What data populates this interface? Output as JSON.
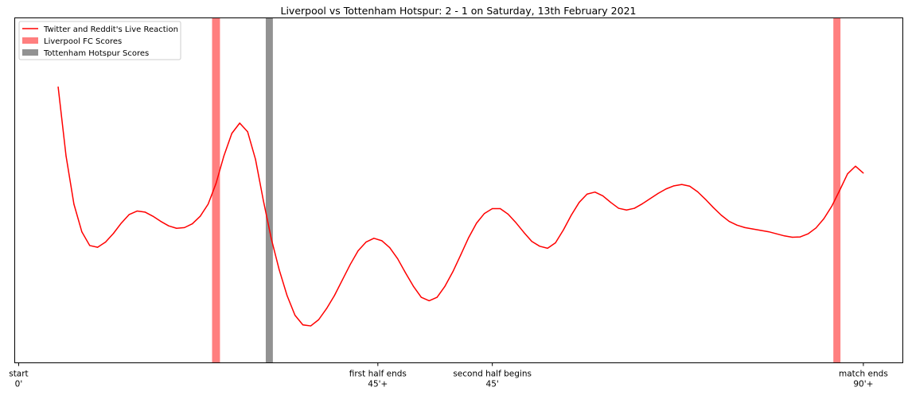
{
  "chart_data": {
    "type": "line",
    "title": "Liverpool vs Tottenham Hotspur: 2 - 1 on Saturday, 13th February 2021",
    "xlabel": "",
    "ylabel": "",
    "grid": false,
    "legend_position": "top-left",
    "x_ticks": [
      {
        "x": 0,
        "line1": "start",
        "line2": "0'"
      },
      {
        "x": 45.5,
        "line1": "first half ends",
        "line2": "45'+"
      },
      {
        "x": 60,
        "line1": "second half begins",
        "line2": "45'"
      },
      {
        "x": 107,
        "line1": "match ends",
        "line2": "90'+"
      }
    ],
    "xlim": [
      -0.5,
      112
    ],
    "ylim": [
      0,
      1
    ],
    "legend": [
      {
        "label": "Twitter and Reddit's Live Reaction",
        "kind": "line",
        "color": "#ff0000"
      },
      {
        "label": "Liverpool FC Scores",
        "kind": "patch",
        "color": "#ff7f7f"
      },
      {
        "label": "Tottenham Hotspur Scores",
        "kind": "patch",
        "color": "#929292"
      }
    ],
    "goal_bands": [
      {
        "team": "Liverpool FC",
        "x0": 24.5,
        "x1": 25.5,
        "color": "#ff7f7f"
      },
      {
        "team": "Tottenham Hotspur",
        "x0": 31.3,
        "x1": 32.2,
        "color": "#929292"
      },
      {
        "team": "Liverpool FC",
        "x0": 103.2,
        "x1": 104.1,
        "color": "#ff7f7f"
      }
    ],
    "series": [
      {
        "color": "#ff0000",
        "x": [
          5,
          6,
          7,
          8,
          9,
          10,
          11,
          12,
          13,
          14,
          15,
          16,
          17,
          18,
          19,
          20,
          21,
          22,
          23,
          24,
          25,
          26,
          27,
          28,
          29,
          30,
          31,
          32,
          33,
          34,
          35,
          36,
          37,
          38,
          39,
          40,
          41,
          42,
          43,
          44,
          45,
          46,
          47,
          48,
          49,
          50,
          51,
          52,
          53,
          54,
          55,
          56,
          57,
          58,
          59,
          60,
          61,
          62,
          63,
          64,
          65,
          66,
          67,
          68,
          69,
          70,
          71,
          72,
          73,
          74,
          75,
          76,
          77,
          78,
          79,
          80,
          81,
          82,
          83,
          84,
          85,
          86,
          87,
          88,
          89,
          90,
          91,
          92,
          93,
          94,
          95,
          96,
          97,
          98,
          99,
          100,
          101,
          102,
          103,
          104,
          105,
          106,
          107
        ],
        "y": [
          0.8,
          0.6,
          0.46,
          0.38,
          0.34,
          0.335,
          0.35,
          0.375,
          0.405,
          0.43,
          0.44,
          0.437,
          0.425,
          0.41,
          0.397,
          0.39,
          0.392,
          0.403,
          0.425,
          0.46,
          0.52,
          0.6,
          0.665,
          0.695,
          0.67,
          0.59,
          0.47,
          0.36,
          0.27,
          0.195,
          0.138,
          0.11,
          0.107,
          0.125,
          0.157,
          0.195,
          0.24,
          0.285,
          0.325,
          0.35,
          0.361,
          0.354,
          0.334,
          0.302,
          0.261,
          0.222,
          0.19,
          0.18,
          0.19,
          0.222,
          0.264,
          0.313,
          0.363,
          0.405,
          0.433,
          0.447,
          0.447,
          0.431,
          0.406,
          0.378,
          0.352,
          0.338,
          0.332,
          0.348,
          0.385,
          0.428,
          0.465,
          0.489,
          0.495,
          0.484,
          0.465,
          0.448,
          0.443,
          0.448,
          0.461,
          0.476,
          0.491,
          0.504,
          0.513,
          0.517,
          0.512,
          0.496,
          0.474,
          0.45,
          0.428,
          0.41,
          0.399,
          0.392,
          0.388,
          0.384,
          0.38,
          0.374,
          0.368,
          0.364,
          0.365,
          0.374,
          0.391,
          0.418,
          0.454,
          0.5,
          0.548,
          0.57,
          0.55
        ]
      }
    ]
  }
}
